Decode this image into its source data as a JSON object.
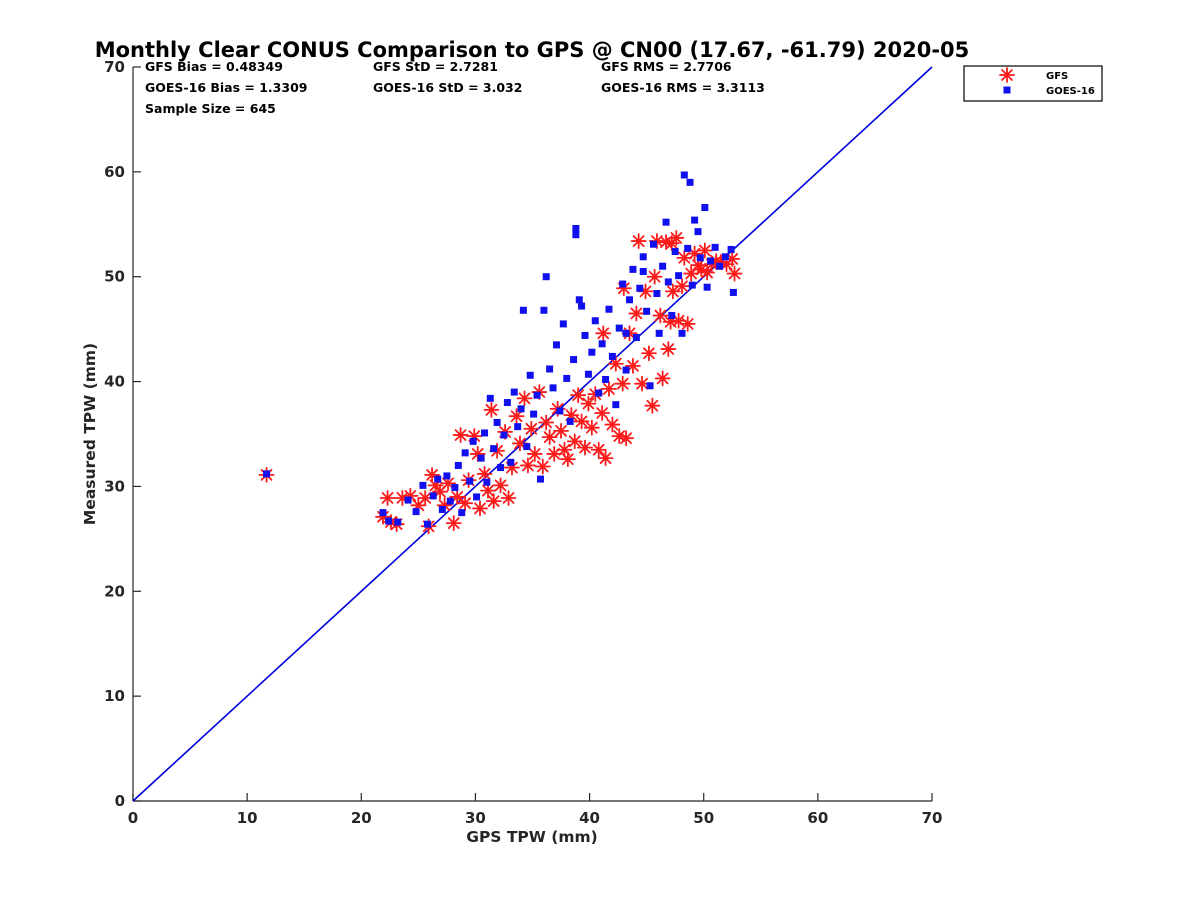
{
  "chart_data": {
    "type": "scatter",
    "title": "Monthly Clear CONUS Comparison to GPS @ CN00 (17.67, -61.79) 2020-05",
    "xlabel": "GPS TPW (mm)",
    "ylabel": "Measured TPW (mm)",
    "xlim": [
      0,
      70
    ],
    "ylim": [
      0,
      70
    ],
    "xticks": [
      "0",
      "10",
      "20",
      "30",
      "40",
      "50",
      "60",
      "70"
    ],
    "yticks": [
      "0",
      "10",
      "20",
      "30",
      "40",
      "50",
      "60",
      "70"
    ],
    "grid": false,
    "legend_position": "outside-top-right",
    "stats": [
      "GFS Bias = 0.48349",
      "GFS StD = 2.7281",
      "GFS RMS = 2.7706",
      "GOES-16 Bias = 1.3309",
      "GOES-16 StD = 3.032",
      "GOES-16 RMS = 3.3113",
      "Sample Size = 645"
    ],
    "reference_line": {
      "from": [
        0,
        0
      ],
      "to": [
        70,
        70
      ],
      "color": "#0000dd"
    },
    "series": [
      {
        "name": "GFS",
        "marker": "asterisk",
        "color": "#ff1a1a",
        "points": [
          [
            11.7,
            31.1
          ],
          [
            21.9,
            27.1
          ],
          [
            22.3,
            28.9
          ],
          [
            22.6,
            26.6
          ],
          [
            23.1,
            26.4
          ],
          [
            23.6,
            28.9
          ],
          [
            24.3,
            29.1
          ],
          [
            25.0,
            28.2
          ],
          [
            25.6,
            28.9
          ],
          [
            25.9,
            26.2
          ],
          [
            26.2,
            31.1
          ],
          [
            26.5,
            30.1
          ],
          [
            26.9,
            29.5
          ],
          [
            27.3,
            28.2
          ],
          [
            27.6,
            30.3
          ],
          [
            28.1,
            26.5
          ],
          [
            28.4,
            29.0
          ],
          [
            28.7,
            34.9
          ],
          [
            29.1,
            28.4
          ],
          [
            29.4,
            30.6
          ],
          [
            29.9,
            34.8
          ],
          [
            30.2,
            33.1
          ],
          [
            30.4,
            27.9
          ],
          [
            30.8,
            31.2
          ],
          [
            31.1,
            29.6
          ],
          [
            31.4,
            37.3
          ],
          [
            31.6,
            28.6
          ],
          [
            31.9,
            33.4
          ],
          [
            32.2,
            30.1
          ],
          [
            32.6,
            35.2
          ],
          [
            32.9,
            28.9
          ],
          [
            33.2,
            31.8
          ],
          [
            33.6,
            36.7
          ],
          [
            33.9,
            34.1
          ],
          [
            34.3,
            38.4
          ],
          [
            34.6,
            32.0
          ],
          [
            34.9,
            35.5
          ],
          [
            35.2,
            33.1
          ],
          [
            35.6,
            39.0
          ],
          [
            35.9,
            31.9
          ],
          [
            36.2,
            36.1
          ],
          [
            36.5,
            34.7
          ],
          [
            36.9,
            33.1
          ],
          [
            37.2,
            37.4
          ],
          [
            37.5,
            35.3
          ],
          [
            37.8,
            33.5
          ],
          [
            38.1,
            32.6
          ],
          [
            38.4,
            36.8
          ],
          [
            38.7,
            34.3
          ],
          [
            39.0,
            38.7
          ],
          [
            39.3,
            36.2
          ],
          [
            39.6,
            33.7
          ],
          [
            39.9,
            37.9
          ],
          [
            40.2,
            35.6
          ],
          [
            40.5,
            38.8
          ],
          [
            40.8,
            33.5
          ],
          [
            41.1,
            37.0
          ],
          [
            41.4,
            32.7
          ],
          [
            41.7,
            39.3
          ],
          [
            42.0,
            35.9
          ],
          [
            42.3,
            41.7
          ],
          [
            42.6,
            34.8
          ],
          [
            42.9,
            39.8
          ],
          [
            43.2,
            34.6
          ],
          [
            43.5,
            44.6
          ],
          [
            43.8,
            41.5
          ],
          [
            44.1,
            46.5
          ],
          [
            44.3,
            53.4
          ],
          [
            44.6,
            39.8
          ],
          [
            44.9,
            48.6
          ],
          [
            45.2,
            42.7
          ],
          [
            45.5,
            37.7
          ],
          [
            45.7,
            50.0
          ],
          [
            45.9,
            53.4
          ],
          [
            46.2,
            46.3
          ],
          [
            46.4,
            40.3
          ],
          [
            46.7,
            53.3
          ],
          [
            46.9,
            43.1
          ],
          [
            47.1,
            45.7
          ],
          [
            47.3,
            48.6
          ],
          [
            47.6,
            53.7
          ],
          [
            47.8,
            45.8
          ],
          [
            48.1,
            49.1
          ],
          [
            48.3,
            51.8
          ],
          [
            48.6,
            45.5
          ],
          [
            48.9,
            50.3
          ],
          [
            49.2,
            52.2
          ],
          [
            49.5,
            51.1
          ],
          [
            49.8,
            50.7
          ],
          [
            50.1,
            52.5
          ],
          [
            50.3,
            50.4
          ],
          [
            50.7,
            51.2
          ],
          [
            51.1,
            51.5
          ],
          [
            51.5,
            51.4
          ],
          [
            52.0,
            51.2
          ],
          [
            52.5,
            51.7
          ],
          [
            52.7,
            50.3
          ],
          [
            47.2,
            53.2
          ],
          [
            43.0,
            48.9
          ],
          [
            41.2,
            44.6
          ]
        ]
      },
      {
        "name": "GOES-16",
        "marker": "square",
        "color": "#1010ee",
        "points": [
          [
            11.7,
            31.2
          ],
          [
            21.9,
            27.5
          ],
          [
            22.4,
            26.7
          ],
          [
            23.2,
            26.6
          ],
          [
            24.1,
            28.7
          ],
          [
            24.8,
            27.6
          ],
          [
            25.4,
            30.1
          ],
          [
            25.8,
            26.4
          ],
          [
            26.3,
            29.1
          ],
          [
            26.7,
            30.7
          ],
          [
            27.1,
            27.8
          ],
          [
            27.5,
            31.0
          ],
          [
            27.8,
            28.6
          ],
          [
            28.2,
            29.9
          ],
          [
            28.5,
            32.0
          ],
          [
            28.8,
            27.5
          ],
          [
            29.1,
            33.2
          ],
          [
            29.5,
            30.5
          ],
          [
            29.8,
            34.3
          ],
          [
            30.1,
            29.0
          ],
          [
            30.5,
            32.7
          ],
          [
            30.8,
            35.1
          ],
          [
            31.0,
            30.4
          ],
          [
            31.3,
            38.4
          ],
          [
            31.6,
            33.6
          ],
          [
            31.9,
            36.1
          ],
          [
            32.2,
            31.8
          ],
          [
            32.5,
            34.9
          ],
          [
            32.8,
            38.0
          ],
          [
            33.1,
            32.3
          ],
          [
            33.4,
            39.0
          ],
          [
            33.7,
            35.7
          ],
          [
            34.0,
            37.4
          ],
          [
            34.2,
            46.8
          ],
          [
            34.5,
            33.8
          ],
          [
            34.8,
            40.6
          ],
          [
            35.1,
            36.9
          ],
          [
            35.4,
            38.7
          ],
          [
            35.7,
            30.7
          ],
          [
            36.0,
            46.8
          ],
          [
            36.2,
            50.0
          ],
          [
            36.5,
            41.2
          ],
          [
            36.8,
            39.4
          ],
          [
            37.1,
            43.5
          ],
          [
            37.4,
            37.2
          ],
          [
            37.7,
            45.5
          ],
          [
            38.0,
            40.3
          ],
          [
            38.3,
            36.2
          ],
          [
            38.6,
            42.1
          ],
          [
            38.8,
            54.6
          ],
          [
            38.8,
            54.0
          ],
          [
            39.1,
            47.8
          ],
          [
            39.3,
            47.2
          ],
          [
            39.6,
            44.4
          ],
          [
            39.9,
            40.7
          ],
          [
            40.2,
            42.8
          ],
          [
            40.5,
            45.8
          ],
          [
            40.8,
            38.9
          ],
          [
            41.1,
            43.6
          ],
          [
            41.4,
            40.2
          ],
          [
            41.7,
            46.9
          ],
          [
            42.0,
            42.4
          ],
          [
            42.3,
            37.8
          ],
          [
            42.6,
            45.1
          ],
          [
            42.9,
            49.3
          ],
          [
            43.2,
            41.1
          ],
          [
            43.5,
            47.8
          ],
          [
            43.8,
            50.7
          ],
          [
            44.1,
            44.2
          ],
          [
            44.4,
            48.9
          ],
          [
            44.7,
            51.9
          ],
          [
            45.0,
            46.7
          ],
          [
            45.3,
            39.6
          ],
          [
            45.6,
            53.1
          ],
          [
            45.9,
            48.4
          ],
          [
            46.1,
            44.6
          ],
          [
            46.4,
            51.0
          ],
          [
            46.7,
            55.2
          ],
          [
            46.9,
            49.5
          ],
          [
            47.2,
            46.3
          ],
          [
            47.5,
            52.4
          ],
          [
            47.8,
            50.1
          ],
          [
            48.1,
            44.6
          ],
          [
            48.3,
            59.7
          ],
          [
            48.6,
            52.7
          ],
          [
            48.8,
            59.0
          ],
          [
            49.0,
            49.2
          ],
          [
            49.2,
            55.4
          ],
          [
            49.5,
            54.3
          ],
          [
            49.7,
            51.8
          ],
          [
            50.1,
            56.6
          ],
          [
            50.3,
            49.0
          ],
          [
            50.6,
            51.5
          ],
          [
            51.0,
            52.8
          ],
          [
            51.4,
            51.0
          ],
          [
            51.9,
            51.9
          ],
          [
            52.4,
            52.6
          ],
          [
            52.6,
            48.5
          ],
          [
            44.7,
            50.5
          ],
          [
            43.2,
            44.6
          ]
        ]
      }
    ]
  }
}
